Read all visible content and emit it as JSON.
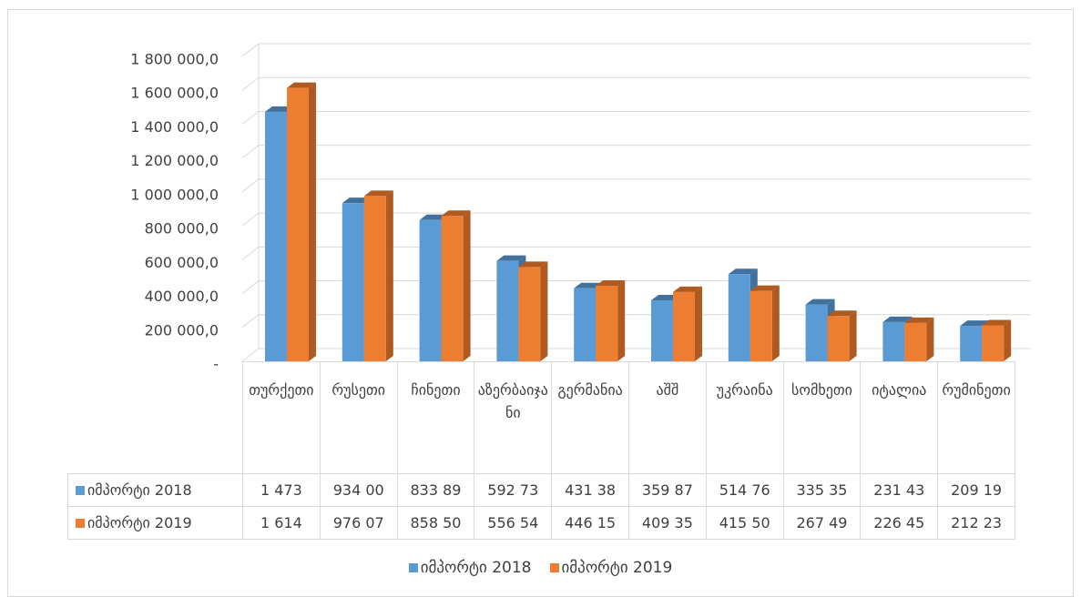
{
  "chart_data": {
    "type": "bar3d",
    "categories": [
      "თურქეთი",
      "რუსეთი",
      "ჩინეთი",
      "აზერბაიჯანი",
      "გერმანია",
      "აშშ",
      "უკრაინა",
      "სომხეთი",
      "იტალია",
      "რუმინეთი"
    ],
    "series": [
      {
        "name": "იმპორტი 2018",
        "color": "#5b9bd5",
        "side": "#41719c",
        "values": [
          1473000,
          934000,
          833890,
          592730,
          431380,
          359870,
          514760,
          335350,
          231430,
          209190
        ],
        "value_labels": [
          "1 473",
          "934 00",
          "833 89",
          "592 73",
          "431 38",
          "359 87",
          "514 76",
          "335 35",
          "231 43",
          "209 19"
        ]
      },
      {
        "name": "იმპორტი 2019",
        "color": "#ed7d31",
        "side": "#ae5a21",
        "values": [
          1614000,
          976070,
          858500,
          556540,
          446150,
          409350,
          415500,
          267490,
          226450,
          212230
        ],
        "value_labels": [
          "1 614",
          "976 07",
          "858 50",
          "556 54",
          "446 15",
          "409 35",
          "415 50",
          "267 49",
          "226 45",
          "212 23"
        ]
      }
    ],
    "ylim": [
      0,
      1800000
    ],
    "yticks": [
      {
        "value": 0,
        "label": "-"
      },
      {
        "value": 200000,
        "label": "200 000,0"
      },
      {
        "value": 400000,
        "label": "400 000,0"
      },
      {
        "value": 600000,
        "label": "600 000,0"
      },
      {
        "value": 800000,
        "label": "800 000,0"
      },
      {
        "value": 1000000,
        "label": "1 000 000,0"
      },
      {
        "value": 1200000,
        "label": "1 200 000,0"
      },
      {
        "value": 1400000,
        "label": "1 400 000,0"
      },
      {
        "value": 1600000,
        "label": "1 600 000,0"
      },
      {
        "value": 1800000,
        "label": "1 800 000,0"
      }
    ],
    "grid": true,
    "legend": "bottom"
  }
}
